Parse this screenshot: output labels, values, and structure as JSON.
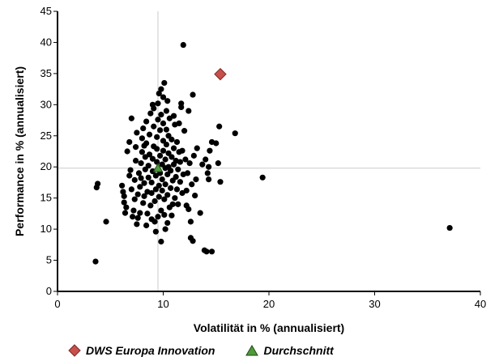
{
  "chart_data": {
    "type": "scatter",
    "xlabel": "Volatilität in % (annualisiert)",
    "ylabel": "Performance in % (annualisiert)",
    "xlim": [
      0,
      40
    ],
    "ylim": [
      0,
      45
    ],
    "xticks": [
      0,
      10,
      20,
      30,
      40
    ],
    "yticks": [
      0,
      5,
      10,
      15,
      20,
      25,
      30,
      35,
      40,
      45
    ],
    "grid": false,
    "reference_lines": {
      "x": 9.5,
      "y": 19.8
    },
    "legend_position": "bottom",
    "series": [
      {
        "name": "",
        "marker": "circle",
        "color": "#000000",
        "points": [
          [
            3.6,
            4.8
          ],
          [
            3.8,
            17.3
          ],
          [
            3.7,
            16.7
          ],
          [
            4.6,
            11.2
          ],
          [
            6.1,
            17.0
          ],
          [
            6.2,
            16.0
          ],
          [
            6.3,
            15.3
          ],
          [
            6.3,
            14.3
          ],
          [
            6.5,
            13.5
          ],
          [
            6.4,
            12.6
          ],
          [
            6.6,
            22.5
          ],
          [
            6.8,
            24.0
          ],
          [
            6.8,
            18.6
          ],
          [
            6.9,
            19.5
          ],
          [
            7.0,
            27.8
          ],
          [
            7.1,
            12.0
          ],
          [
            7.2,
            13.0
          ],
          [
            7.3,
            14.8
          ],
          [
            7.3,
            17.9
          ],
          [
            7.4,
            21.0
          ],
          [
            7.4,
            23.2
          ],
          [
            7.5,
            25.5
          ],
          [
            7.6,
            11.8
          ],
          [
            7.6,
            15.6
          ],
          [
            7.7,
            19.0
          ],
          [
            7.8,
            12.6
          ],
          [
            7.8,
            16.8
          ],
          [
            7.9,
            18.2
          ],
          [
            7.9,
            20.6
          ],
          [
            8.0,
            22.4
          ],
          [
            8.0,
            24.6
          ],
          [
            8.1,
            26.2
          ],
          [
            8.1,
            14.2
          ],
          [
            8.2,
            15.3
          ],
          [
            8.2,
            17.4
          ],
          [
            8.3,
            19.6
          ],
          [
            8.3,
            21.6
          ],
          [
            8.4,
            23.8
          ],
          [
            8.4,
            27.3
          ],
          [
            8.5,
            12.5
          ],
          [
            8.5,
            16.0
          ],
          [
            8.6,
            18.3
          ],
          [
            8.6,
            20.2
          ],
          [
            8.7,
            22.0
          ],
          [
            8.7,
            25.2
          ],
          [
            8.8,
            28.6
          ],
          [
            8.8,
            13.8
          ],
          [
            8.9,
            15.8
          ],
          [
            8.9,
            17.5
          ],
          [
            9.0,
            19.3
          ],
          [
            9.0,
            21.3
          ],
          [
            9.1,
            23.3
          ],
          [
            9.1,
            26.5
          ],
          [
            9.1,
            29.4
          ],
          [
            9.2,
            11.2
          ],
          [
            9.2,
            14.5
          ],
          [
            9.3,
            16.4
          ],
          [
            9.3,
            18.6
          ],
          [
            9.4,
            20.8
          ],
          [
            9.4,
            22.9
          ],
          [
            9.4,
            24.8
          ],
          [
            9.5,
            27.6
          ],
          [
            9.5,
            30.2
          ],
          [
            9.5,
            12.0
          ],
          [
            9.6,
            15.2
          ],
          [
            9.6,
            17.0
          ],
          [
            9.7,
            19.0
          ],
          [
            9.7,
            21.8
          ],
          [
            9.7,
            25.9
          ],
          [
            9.8,
            28.4
          ],
          [
            9.8,
            32.5
          ],
          [
            9.8,
            13.0
          ],
          [
            9.9,
            16.2
          ],
          [
            9.9,
            18.0
          ],
          [
            9.9,
            20.4
          ],
          [
            10.0,
            22.6
          ],
          [
            10.0,
            24.2
          ],
          [
            10.0,
            27.0
          ],
          [
            10.0,
            31.2
          ],
          [
            10.1,
            33.5
          ],
          [
            10.1,
            12.3
          ],
          [
            10.1,
            14.8
          ],
          [
            10.2,
            17.2
          ],
          [
            10.2,
            19.8
          ],
          [
            10.2,
            21.2
          ],
          [
            10.3,
            23.6
          ],
          [
            10.3,
            26.0
          ],
          [
            10.3,
            29.0
          ],
          [
            10.4,
            11.0
          ],
          [
            10.4,
            15.5
          ],
          [
            10.4,
            18.8
          ],
          [
            10.5,
            20.0
          ],
          [
            10.5,
            22.2
          ],
          [
            10.5,
            25.0
          ],
          [
            10.6,
            27.8
          ],
          [
            10.6,
            13.5
          ],
          [
            10.7,
            16.6
          ],
          [
            10.7,
            19.4
          ],
          [
            10.8,
            21.6
          ],
          [
            10.8,
            24.4
          ],
          [
            10.9,
            14.0
          ],
          [
            10.9,
            17.8
          ],
          [
            11.0,
            20.4
          ],
          [
            11.0,
            23.0
          ],
          [
            11.1,
            26.8
          ],
          [
            11.1,
            15.0
          ],
          [
            11.2,
            18.4
          ],
          [
            11.2,
            21.0
          ],
          [
            11.3,
            24.0
          ],
          [
            11.3,
            16.4
          ],
          [
            11.4,
            19.6
          ],
          [
            11.5,
            22.4
          ],
          [
            11.5,
            27.0
          ],
          [
            11.6,
            17.6
          ],
          [
            11.6,
            20.8
          ],
          [
            11.7,
            29.6
          ],
          [
            11.7,
            30.2
          ],
          [
            11.8,
            15.8
          ],
          [
            11.8,
            22.6
          ],
          [
            11.9,
            18.8
          ],
          [
            11.9,
            39.6
          ],
          [
            12.0,
            25.8
          ],
          [
            12.1,
            21.2
          ],
          [
            12.2,
            16.2
          ],
          [
            12.3,
            19.0
          ],
          [
            12.4,
            13.2
          ],
          [
            12.4,
            29.0
          ],
          [
            12.5,
            20.6
          ],
          [
            12.6,
            11.2
          ],
          [
            12.7,
            17.2
          ],
          [
            12.8,
            31.6
          ],
          [
            12.9,
            21.8
          ],
          [
            13.0,
            15.4
          ],
          [
            13.1,
            18.0
          ],
          [
            12.6,
            8.6
          ],
          [
            12.8,
            8.1
          ],
          [
            13.2,
            23.0
          ],
          [
            13.5,
            12.6
          ],
          [
            13.9,
            6.6
          ],
          [
            14.1,
            6.4
          ],
          [
            13.7,
            20.4
          ],
          [
            14.0,
            21.2
          ],
          [
            14.2,
            19.0
          ],
          [
            14.3,
            20.0
          ],
          [
            14.4,
            22.6
          ],
          [
            14.6,
            6.4
          ],
          [
            14.6,
            24.0
          ],
          [
            14.3,
            18.0
          ],
          [
            15.0,
            23.8
          ],
          [
            15.2,
            20.6
          ],
          [
            15.4,
            17.6
          ],
          [
            15.3,
            26.5
          ],
          [
            16.8,
            25.4
          ],
          [
            19.4,
            18.3
          ],
          [
            37.1,
            10.2
          ],
          [
            8.4,
            10.6
          ],
          [
            9.3,
            9.6
          ],
          [
            9.8,
            8.0
          ],
          [
            10.2,
            10.0
          ],
          [
            7.5,
            10.8
          ],
          [
            8.9,
            11.6
          ],
          [
            10.8,
            12.2
          ],
          [
            12.2,
            13.8
          ],
          [
            11.4,
            14.0
          ],
          [
            7.0,
            16.4
          ],
          [
            8.2,
            23.4
          ],
          [
            9.0,
            30.0
          ],
          [
            9.6,
            31.8
          ],
          [
            10.4,
            30.6
          ],
          [
            11.0,
            28.2
          ]
        ]
      },
      {
        "name": "DWS Europa Innovation",
        "marker": "diamond",
        "color": "#c8504b",
        "points": [
          [
            15.4,
            34.9
          ]
        ]
      },
      {
        "name": "Durchschnitt",
        "marker": "triangle",
        "color": "#4e9a3a",
        "points": [
          [
            9.5,
            19.8
          ]
        ]
      }
    ]
  }
}
